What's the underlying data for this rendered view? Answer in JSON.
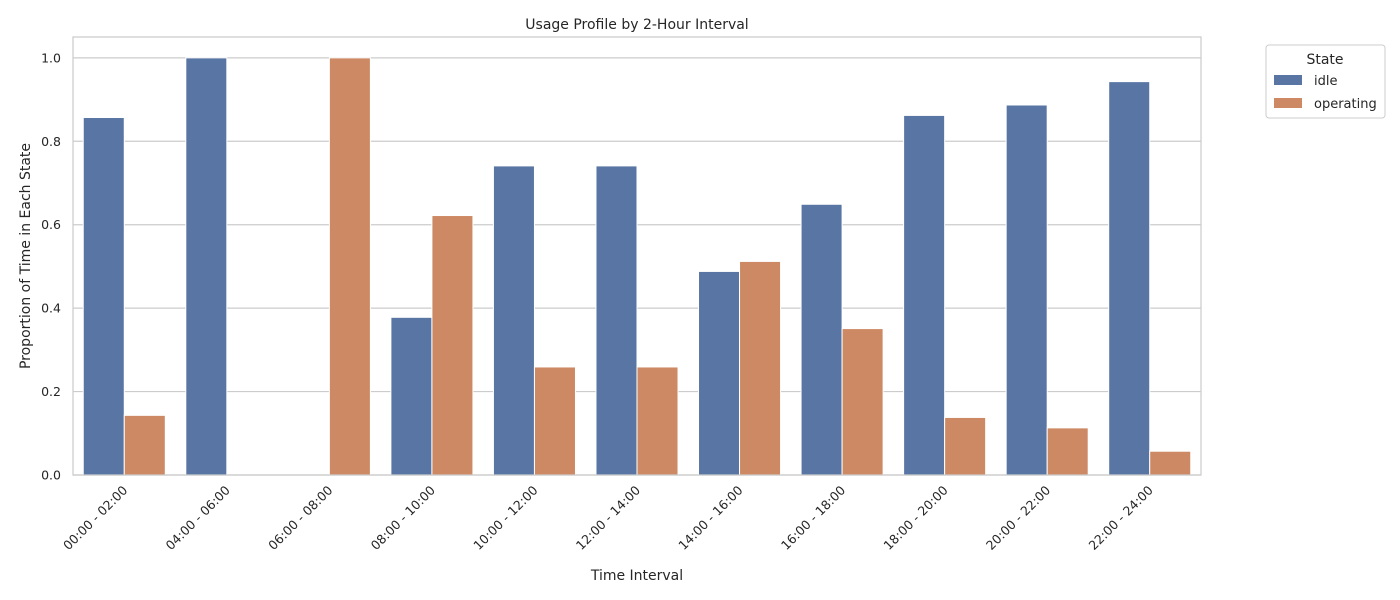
{
  "chart_data": {
    "type": "bar",
    "title": "Usage Profile by 2-Hour Interval",
    "xlabel": "Time Interval",
    "ylabel": "Proportion of Time in Each State",
    "ylim": [
      0,
      1.05
    ],
    "yticks": [
      "0.0",
      "0.2",
      "0.4",
      "0.6",
      "0.8",
      "1.0"
    ],
    "grid": true,
    "legend": {
      "title": "State",
      "placement": "outside-top-right"
    },
    "categories": [
      "00:00 - 02:00",
      "04:00 - 06:00",
      "06:00 - 08:00",
      "08:00 - 10:00",
      "10:00 - 12:00",
      "12:00 - 14:00",
      "14:00 - 16:00",
      "16:00 - 18:00",
      "18:00 - 20:00",
      "20:00 - 22:00",
      "22:00 - 24:00"
    ],
    "series": [
      {
        "name": "idle",
        "color": "#5875a4",
        "values": [
          0.857,
          1.0,
          0.0,
          0.378,
          0.741,
          0.741,
          0.488,
          0.649,
          0.862,
          0.887,
          0.943
        ]
      },
      {
        "name": "operating",
        "color": "#cc8963",
        "values": [
          0.143,
          0.0,
          1.0,
          0.622,
          0.259,
          0.259,
          0.512,
          0.351,
          0.138,
          0.113,
          0.057
        ]
      }
    ]
  }
}
